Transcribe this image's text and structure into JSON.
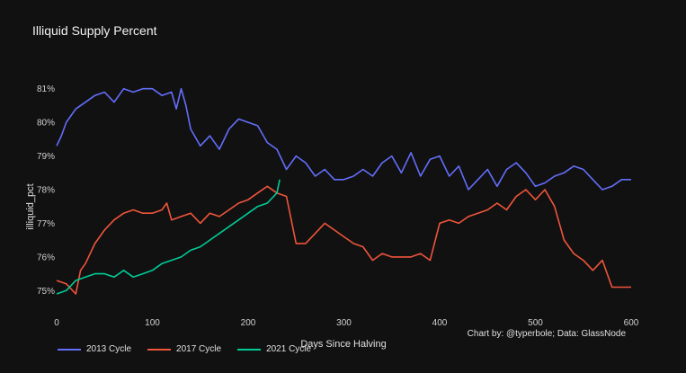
{
  "chart_data": {
    "type": "line",
    "title": "Illiquid Supply Percent",
    "xlabel": "Days Since Halving",
    "ylabel": "illiquid_pct",
    "xlim": [
      0,
      600
    ],
    "ylim": [
      74.5,
      81.5
    ],
    "x_ticks": [
      0,
      100,
      200,
      300,
      400,
      500,
      600
    ],
    "y_ticks": [
      75,
      76,
      77,
      78,
      79,
      80,
      81
    ],
    "y_tick_labels": [
      "75%",
      "76%",
      "77%",
      "78%",
      "79%",
      "80%",
      "81%"
    ],
    "grid": false,
    "legend_position": "bottom-left",
    "annotation": "Chart by: @typerbole; Data: GlassNode",
    "series": [
      {
        "name": "2013 Cycle",
        "color": "#636efa",
        "x": [
          0,
          5,
          10,
          20,
          30,
          40,
          50,
          60,
          70,
          80,
          90,
          100,
          110,
          120,
          125,
          130,
          135,
          140,
          150,
          160,
          170,
          180,
          190,
          200,
          210,
          220,
          230,
          240,
          250,
          260,
          270,
          280,
          290,
          300,
          310,
          320,
          330,
          340,
          350,
          360,
          370,
          380,
          390,
          400,
          410,
          420,
          430,
          440,
          450,
          460,
          470,
          480,
          490,
          500,
          510,
          520,
          530,
          540,
          550,
          560,
          570,
          580,
          590,
          600
        ],
        "values": [
          79.3,
          79.6,
          80.0,
          80.4,
          80.6,
          80.8,
          80.9,
          80.6,
          81.0,
          80.9,
          81.0,
          81.0,
          80.8,
          80.9,
          80.4,
          81.0,
          80.5,
          79.8,
          79.3,
          79.6,
          79.2,
          79.8,
          80.1,
          80.0,
          79.9,
          79.4,
          79.2,
          78.6,
          79.0,
          78.8,
          78.4,
          78.6,
          78.3,
          78.3,
          78.4,
          78.6,
          78.4,
          78.8,
          79.0,
          78.5,
          79.1,
          78.4,
          78.9,
          79.0,
          78.4,
          78.7,
          78.0,
          78.3,
          78.6,
          78.1,
          78.6,
          78.8,
          78.5,
          78.1,
          78.2,
          78.4,
          78.5,
          78.7,
          78.6,
          78.3,
          78.0,
          78.1,
          78.3,
          78.3
        ]
      },
      {
        "name": "2017 Cycle",
        "color": "#ef553b",
        "x": [
          0,
          10,
          20,
          25,
          30,
          40,
          50,
          60,
          70,
          80,
          90,
          100,
          110,
          115,
          120,
          130,
          140,
          150,
          160,
          170,
          180,
          190,
          200,
          210,
          220,
          230,
          240,
          250,
          260,
          270,
          280,
          290,
          300,
          310,
          320,
          330,
          340,
          350,
          360,
          370,
          380,
          390,
          400,
          410,
          420,
          430,
          440,
          450,
          460,
          470,
          480,
          490,
          500,
          510,
          520,
          530,
          540,
          550,
          560,
          570,
          580,
          590,
          600
        ],
        "values": [
          75.3,
          75.2,
          74.9,
          75.6,
          75.8,
          76.4,
          76.8,
          77.1,
          77.3,
          77.4,
          77.3,
          77.3,
          77.4,
          77.6,
          77.1,
          77.2,
          77.3,
          77.0,
          77.3,
          77.2,
          77.4,
          77.6,
          77.7,
          77.9,
          78.1,
          77.9,
          77.8,
          76.4,
          76.4,
          76.7,
          77.0,
          76.8,
          76.6,
          76.4,
          76.3,
          75.9,
          76.1,
          76.0,
          76.0,
          76.0,
          76.1,
          75.9,
          77.0,
          77.1,
          77.0,
          77.2,
          77.3,
          77.4,
          77.6,
          77.4,
          77.8,
          78.0,
          77.7,
          78.0,
          77.5,
          76.5,
          76.1,
          75.9,
          75.6,
          75.9,
          75.1,
          75.1,
          75.1
        ]
      },
      {
        "name": "2021 Cycle",
        "color": "#00cc96",
        "x": [
          0,
          10,
          20,
          30,
          40,
          50,
          60,
          70,
          80,
          90,
          100,
          110,
          120,
          130,
          140,
          150,
          160,
          170,
          180,
          190,
          200,
          210,
          220,
          230,
          233
        ],
        "values": [
          74.9,
          75.0,
          75.3,
          75.4,
          75.5,
          75.5,
          75.4,
          75.6,
          75.4,
          75.5,
          75.6,
          75.8,
          75.9,
          76.0,
          76.2,
          76.3,
          76.5,
          76.7,
          76.9,
          77.1,
          77.3,
          77.5,
          77.6,
          77.9,
          78.3
        ]
      }
    ]
  }
}
